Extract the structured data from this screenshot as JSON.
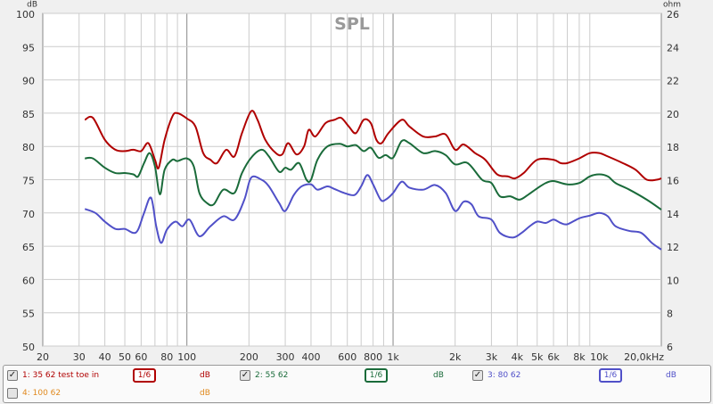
{
  "chart_data": {
    "type": "line",
    "title": "SPL",
    "y_unit_left": "dB",
    "y_unit_right": "ohm",
    "xscale": "log",
    "xlim": [
      20,
      20000
    ],
    "ylim": [
      50,
      100
    ],
    "ylim_right": [
      6,
      26
    ],
    "x_ticks": [
      {
        "v": 20,
        "l": "20"
      },
      {
        "v": 30,
        "l": "30"
      },
      {
        "v": 40,
        "l": "40"
      },
      {
        "v": 50,
        "l": "50"
      },
      {
        "v": 60,
        "l": "60"
      },
      {
        "v": 80,
        "l": "80"
      },
      {
        "v": 100,
        "l": "100"
      },
      {
        "v": 200,
        "l": "200"
      },
      {
        "v": 300,
        "l": "300"
      },
      {
        "v": 400,
        "l": "400"
      },
      {
        "v": 600,
        "l": "600"
      },
      {
        "v": 800,
        "l": "800"
      },
      {
        "v": 1000,
        "l": "1k"
      },
      {
        "v": 2000,
        "l": "2k"
      },
      {
        "v": 3000,
        "l": "3k"
      },
      {
        "v": 4000,
        "l": "4k"
      },
      {
        "v": 5000,
        "l": "5k"
      },
      {
        "v": 6000,
        "l": "6k"
      },
      {
        "v": 8000,
        "l": "8k"
      },
      {
        "v": 10000,
        "l": "10k"
      },
      {
        "v": 20000,
        "l": "20,0kHz"
      }
    ],
    "y_ticks": [
      50,
      55,
      60,
      65,
      70,
      75,
      80,
      85,
      90,
      95,
      100
    ],
    "y_ticks_right": [
      6,
      8,
      10,
      12,
      14,
      16,
      18,
      20,
      22,
      24,
      26
    ],
    "grid": true,
    "series": [
      {
        "name": "1: 35 62 test toe in",
        "color": "#b00000",
        "x": [
          32,
          35,
          40,
          45,
          50,
          55,
          60,
          65,
          70,
          73,
          78,
          85,
          90,
          100,
          110,
          120,
          130,
          140,
          155,
          170,
          185,
          205,
          220,
          240,
          270,
          290,
          310,
          340,
          370,
          390,
          420,
          470,
          520,
          560,
          610,
          660,
          720,
          780,
          830,
          880,
          950,
          1100,
          1200,
          1400,
          1600,
          1800,
          2000,
          2200,
          2500,
          2800,
          3200,
          3600,
          3900,
          4300,
          5000,
          6000,
          6500,
          7000,
          8000,
          9000,
          10000,
          11000,
          13000,
          15000,
          17000,
          19000,
          20000
        ],
        "y": [
          84,
          84.3,
          81,
          79.5,
          79.3,
          79.5,
          79.3,
          80.5,
          78,
          76.8,
          81,
          84.5,
          85,
          84.2,
          83,
          79,
          78,
          77.5,
          79.5,
          78.5,
          82,
          85.3,
          84,
          81,
          79,
          78.8,
          80.5,
          78.8,
          80,
          82.5,
          81.5,
          83.5,
          84,
          84.3,
          83,
          82,
          84,
          83.5,
          81,
          80.5,
          82,
          84,
          83,
          81.5,
          81.5,
          81.8,
          79.5,
          80.3,
          79,
          78,
          75.8,
          75.5,
          75.2,
          76,
          78,
          78,
          77.5,
          77.5,
          78.2,
          79,
          79,
          78.5,
          77.5,
          76.5,
          75,
          75,
          75.2
        ]
      },
      {
        "name": "2: 55 62",
        "color": "#1a6b3a",
        "x": [
          32,
          35,
          40,
          45,
          50,
          55,
          58,
          62,
          66,
          70,
          74,
          78,
          85,
          90,
          100,
          108,
          115,
          125,
          135,
          150,
          170,
          185,
          205,
          230,
          250,
          280,
          300,
          320,
          350,
          380,
          400,
          430,
          480,
          550,
          600,
          660,
          720,
          780,
          850,
          920,
          1000,
          1100,
          1200,
          1400,
          1600,
          1800,
          2000,
          2300,
          2700,
          3000,
          3300,
          3700,
          4100,
          4500,
          5000,
          5500,
          6000,
          7000,
          8000,
          9000,
          10000,
          11000,
          12000,
          14000,
          17000,
          20000
        ],
        "y": [
          78.2,
          78.2,
          76.8,
          76,
          76,
          75.8,
          75.5,
          77.5,
          79,
          77,
          72.8,
          76.5,
          78,
          77.8,
          78.2,
          77,
          73,
          71.5,
          71.3,
          73.5,
          73,
          76,
          78.3,
          79.5,
          78.5,
          76.2,
          76.8,
          76.5,
          77.5,
          75,
          75,
          78,
          80,
          80.4,
          80,
          80.2,
          79.3,
          79.8,
          78.3,
          78.7,
          78.3,
          80.8,
          80.5,
          79,
          79.3,
          78.7,
          77.3,
          77.5,
          75,
          74.5,
          72.5,
          72.5,
          72,
          72.7,
          73.7,
          74.5,
          74.8,
          74.3,
          74.5,
          75.5,
          75.8,
          75.5,
          74.5,
          73.5,
          72,
          70.5
        ]
      },
      {
        "name": "3: 80 62",
        "color": "#5050c8",
        "x": [
          32,
          36,
          40,
          45,
          50,
          55,
          58,
          62,
          67,
          71,
          75,
          80,
          88,
          95,
          103,
          115,
          130,
          150,
          170,
          190,
          205,
          230,
          250,
          280,
          300,
          330,
          360,
          400,
          430,
          480,
          520,
          580,
          650,
          700,
          750,
          800,
          870,
          920,
          1000,
          1100,
          1200,
          1400,
          1600,
          1800,
          2000,
          2200,
          2400,
          2600,
          3000,
          3300,
          3800,
          4200,
          4600,
          5000,
          5500,
          6000,
          6500,
          7000,
          8000,
          9000,
          10000,
          11000,
          12000,
          14000,
          16000,
          18000,
          20000
        ],
        "y": [
          70.6,
          70,
          68.7,
          67.6,
          67.6,
          67,
          67.5,
          70,
          72.3,
          68,
          65.5,
          67.5,
          68.7,
          68,
          69,
          66.5,
          68,
          69.5,
          69,
          72,
          75.3,
          75,
          74,
          71.5,
          70.3,
          72.7,
          74,
          74.3,
          73.5,
          74,
          73.6,
          73,
          72.7,
          74,
          75.7,
          74.3,
          72,
          72,
          73,
          74.7,
          73.8,
          73.5,
          74.2,
          73,
          70.3,
          71.7,
          71.3,
          69.5,
          69,
          67,
          66.3,
          67,
          68,
          68.7,
          68.5,
          69,
          68.5,
          68.3,
          69.2,
          69.6,
          70,
          69.5,
          68,
          67.3,
          67,
          65.5,
          64.5
        ]
      }
    ]
  },
  "legend": [
    {
      "label": "1: 35 62 test toe in",
      "checked": true,
      "smoothing": "1/6",
      "unit": "dB",
      "color": "#b00000"
    },
    {
      "label": "2: 55 62",
      "checked": true,
      "smoothing": "1/6",
      "unit": "dB",
      "color": "#1a6b3a"
    },
    {
      "label": "3: 80 62",
      "checked": true,
      "smoothing": "1/6",
      "unit": "dB",
      "color": "#5050c8"
    },
    {
      "label": "4: 100 62",
      "checked": false,
      "unit": "dB",
      "color": "#e08a20"
    }
  ]
}
